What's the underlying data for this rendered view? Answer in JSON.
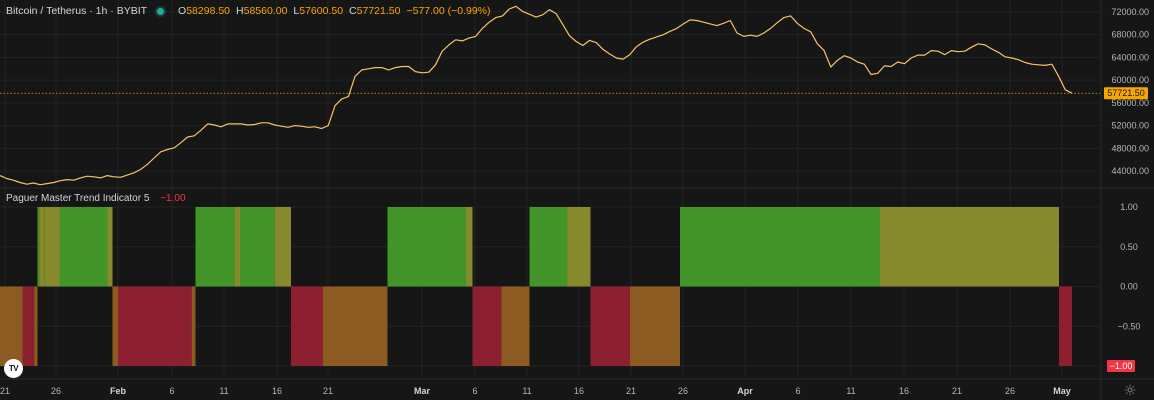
{
  "header": {
    "symbol": "Bitcoin / Tetherus · 1h · BYBIT",
    "ohlc": [
      {
        "label": "O",
        "value": "58298.50"
      },
      {
        "label": "H",
        "value": "58560.00"
      },
      {
        "label": "L",
        "value": "57600.50"
      },
      {
        "label": "C",
        "value": "57721.50"
      }
    ],
    "change": "−577.00 (−0.99%)"
  },
  "indicator": {
    "name": "Paguer Master Trend Indicator 5",
    "value": "−1.00"
  },
  "colors": {
    "price_line": "#f5c26b",
    "last_price": "#f7a600",
    "green": "#43952a",
    "olive": "#878a2c",
    "red": "#8c1f30",
    "brown": "#8c5b22",
    "neg_badge": "#f23645"
  },
  "price_axis": {
    "ticks": [
      "72000.00",
      "68000.00",
      "64000.00",
      "60000.00",
      "56000.00",
      "52000.00",
      "48000.00",
      "44000.00"
    ],
    "last_price": "57721.50"
  },
  "indicator_axis": {
    "ticks": [
      "1.00",
      "0.50",
      "0.00",
      "−0.50"
    ],
    "current": "−1.00"
  },
  "time_axis": {
    "labels": [
      "21",
      "26",
      "Feb",
      "6",
      "11",
      "16",
      "21",
      "Mar",
      "6",
      "11",
      "16",
      "21",
      "26",
      "Apr",
      "6",
      "11",
      "16",
      "21",
      "26",
      "May"
    ]
  },
  "chart_data": [
    {
      "type": "line",
      "title": "",
      "series": [
        {
          "name": "Bitcoin / Tetherus",
          "values": [
            43200,
            42700,
            42400,
            42000,
            41700,
            41900,
            41600,
            41800,
            42000,
            42300,
            42500,
            42400,
            42800,
            43100,
            43000,
            42800,
            43200,
            43000,
            42900,
            43300,
            43700,
            44300,
            45200,
            46300,
            47400,
            47800,
            48100,
            49000,
            50000,
            50200,
            51200,
            52300,
            52100,
            51800,
            52300,
            52300,
            52300,
            52100,
            52200,
            52500,
            52500,
            52100,
            51900,
            51700,
            52000,
            51900,
            51700,
            51800,
            51500,
            52000,
            55500,
            56700,
            57100,
            60700,
            61800,
            62000,
            62200,
            62200,
            61800,
            62200,
            62400,
            62400,
            61500,
            61300,
            61400,
            62700,
            65100,
            66200,
            67100,
            66900,
            67400,
            67700,
            69100,
            70200,
            71000,
            71300,
            72500,
            73000,
            72100,
            71600,
            71100,
            71500,
            72400,
            71700,
            69800,
            67800,
            66800,
            66100,
            67000,
            66600,
            65400,
            64600,
            63900,
            63700,
            64500,
            65900,
            66700,
            67200,
            67600,
            68000,
            68600,
            69100,
            69900,
            70600,
            70500,
            70200,
            69900,
            69600,
            70000,
            70500,
            68300,
            67700,
            67900,
            67700,
            68300,
            69100,
            70100,
            71000,
            71300,
            70000,
            69100,
            68500,
            66400,
            65200,
            62300,
            63500,
            64300,
            63900,
            63200,
            62800,
            61000,
            61200,
            62500,
            62400,
            63200,
            62900,
            63900,
            64400,
            64400,
            65200,
            65100,
            64500,
            65200,
            65000,
            65100,
            65800,
            66400,
            66200,
            65500,
            64900,
            64100,
            63900,
            63600,
            63100,
            62800,
            62700,
            62600,
            62800,
            60700,
            58300,
            57700
          ]
        }
      ],
      "ylim": [
        41200,
        74100
      ],
      "xlabel": "",
      "ylabel": ""
    },
    {
      "type": "bar",
      "title": "Paguer Master Trend Indicator 5",
      "y_range": [
        -1,
        1
      ],
      "segments": [
        {
          "start": 0.0,
          "end": 22.8,
          "value": -1,
          "state": "brown"
        },
        {
          "start": 22.8,
          "end": 34.2,
          "value": -1,
          "state": "red"
        },
        {
          "start": 34.2,
          "end": 37.5,
          "value": -1,
          "state": "brown"
        },
        {
          "start": 37.5,
          "end": 39.3,
          "value": 1,
          "state": "green"
        },
        {
          "start": 39.3,
          "end": 44.8,
          "value": 1,
          "state": "olive"
        },
        {
          "start": 44.8,
          "end": 59.5,
          "value": 1,
          "state": "olive"
        },
        {
          "start": 59.5,
          "end": 107.5,
          "value": 1,
          "state": "green"
        },
        {
          "start": 107.5,
          "end": 112.5,
          "value": 1,
          "state": "olive"
        },
        {
          "start": 112.5,
          "end": 118.0,
          "value": -1,
          "state": "brown"
        },
        {
          "start": 118.0,
          "end": 191.7,
          "value": -1,
          "state": "red"
        },
        {
          "start": 191.7,
          "end": 195.5,
          "value": -1,
          "state": "brown"
        },
        {
          "start": 195.5,
          "end": 235.0,
          "value": 1,
          "state": "green"
        },
        {
          "start": 235.0,
          "end": 240.0,
          "value": 1,
          "state": "olive"
        },
        {
          "start": 240.0,
          "end": 274.7,
          "value": 1,
          "state": "green"
        },
        {
          "start": 274.7,
          "end": 291.0,
          "value": 1,
          "state": "olive"
        },
        {
          "start": 291.0,
          "end": 323.0,
          "value": -1,
          "state": "red"
        },
        {
          "start": 323.0,
          "end": 387.5,
          "value": -1,
          "state": "brown"
        },
        {
          "start": 387.5,
          "end": 466.0,
          "value": 1,
          "state": "green"
        },
        {
          "start": 466.0,
          "end": 472.5,
          "value": 1,
          "state": "olive"
        },
        {
          "start": 472.5,
          "end": 501.5,
          "value": -1,
          "state": "red"
        },
        {
          "start": 501.5,
          "end": 529.5,
          "value": -1,
          "state": "brown"
        },
        {
          "start": 529.5,
          "end": 567.5,
          "value": 1,
          "state": "green"
        },
        {
          "start": 567.5,
          "end": 590.5,
          "value": 1,
          "state": "olive"
        },
        {
          "start": 590.5,
          "end": 630.0,
          "value": -1,
          "state": "red"
        },
        {
          "start": 630.0,
          "end": 680.0,
          "value": -1,
          "state": "brown"
        },
        {
          "start": 680.0,
          "end": 880.0,
          "value": 1,
          "state": "green"
        },
        {
          "start": 880.0,
          "end": 1059.0,
          "value": 1,
          "state": "olive"
        },
        {
          "start": 1059.0,
          "end": 1072.0,
          "value": -1,
          "state": "red"
        }
      ]
    }
  ]
}
